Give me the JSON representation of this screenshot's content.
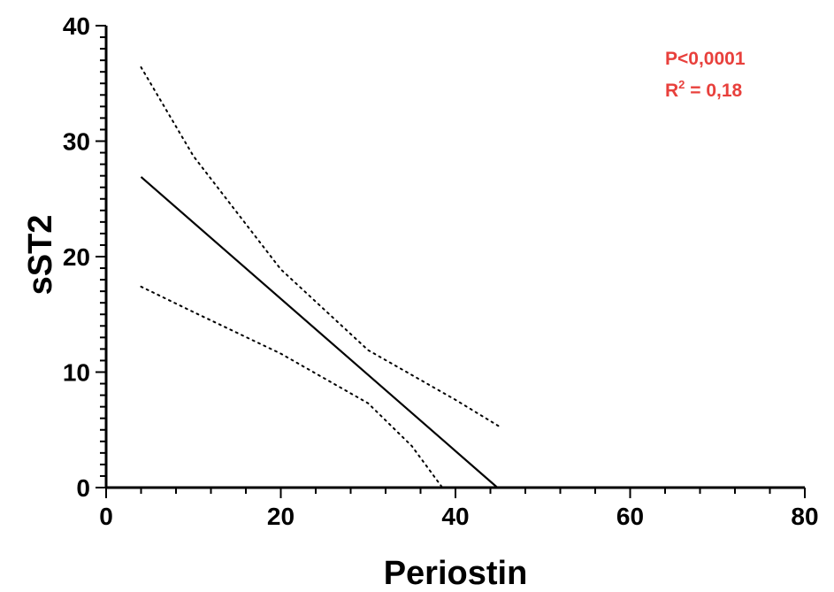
{
  "chart_data": {
    "type": "line",
    "xlabel": "Periostin",
    "ylabel": "sST2",
    "xlim": [
      0,
      80
    ],
    "ylim": [
      0,
      40
    ],
    "x_ticks": [
      "0",
      "20",
      "40",
      "60",
      "80"
    ],
    "y_ticks": [
      "0",
      "10",
      "20",
      "30",
      "40"
    ],
    "grid": false,
    "series": [
      {
        "role": "regression",
        "style": "solid",
        "x": [
          4,
          44.8
        ],
        "y": [
          26.9,
          0
        ]
      },
      {
        "role": "upper-ci",
        "style": "dotted",
        "x": [
          4,
          10,
          20,
          30,
          40,
          45
        ],
        "y": [
          36.4,
          28.7,
          18.9,
          11.9,
          7.6,
          5.3
        ]
      },
      {
        "role": "lower-ci",
        "style": "dotted",
        "x": [
          4,
          10,
          20,
          30,
          35,
          38.5
        ],
        "y": [
          17.4,
          15.2,
          11.6,
          7.3,
          3.6,
          0
        ]
      }
    ],
    "annotations": {
      "p_value": "P<0,0001",
      "r_squared_prefix": "R",
      "r_squared_sup": "2",
      "r_squared_suffix": " = 0,18",
      "color": "#e8403c"
    }
  }
}
